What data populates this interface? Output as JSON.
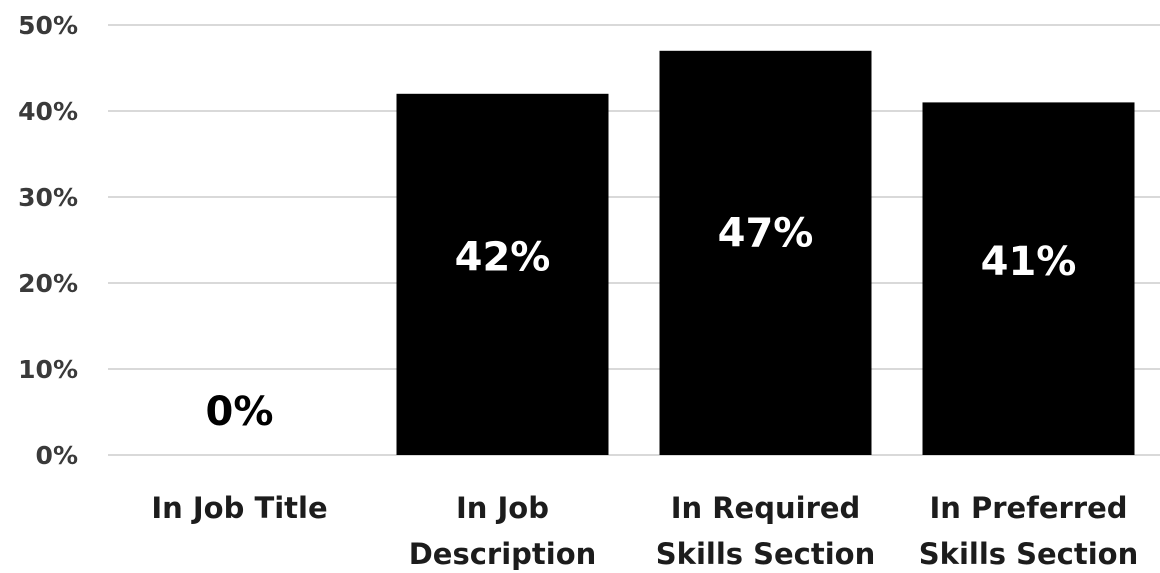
{
  "chart_data": {
    "type": "bar",
    "categories": [
      [
        "In Job Title"
      ],
      [
        "In Job",
        "Description"
      ],
      [
        "In Required",
        "Skills Section"
      ],
      [
        "In Preferred",
        "Skills Section"
      ]
    ],
    "values": [
      0,
      42,
      47,
      41
    ],
    "data_labels": [
      "0%",
      "42%",
      "47%",
      "41%"
    ],
    "title": "",
    "xlabel": "",
    "ylabel": "",
    "ylim": [
      0,
      50
    ],
    "yticks": [
      0,
      10,
      20,
      30,
      40,
      50
    ],
    "ytick_labels": [
      "0%",
      "10%",
      "20%",
      "30%",
      "40%",
      "50%"
    ],
    "grid": true,
    "legend": "none",
    "colors": {
      "bar": "#000000",
      "label_on_bar": "#ffffff",
      "label_above_bar": "#000000",
      "grid": "#d9d9d9"
    }
  }
}
